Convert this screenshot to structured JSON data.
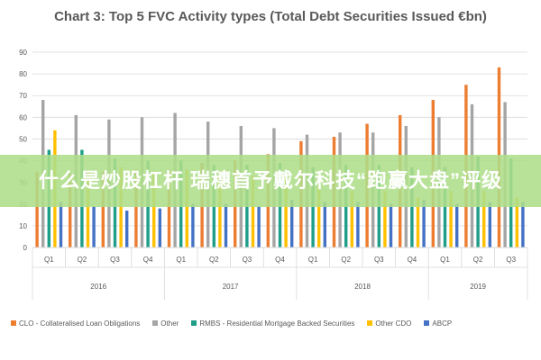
{
  "chart_data": {
    "type": "bar",
    "title": "Chart 3: Top 5 FVC Activity types (Total Debt Securities Issued €bn)",
    "categories": [
      "Q1",
      "Q2",
      "Q3",
      "Q4",
      "Q1",
      "Q2",
      "Q3",
      "Q4",
      "Q1",
      "Q2",
      "Q3",
      "Q4",
      "Q1",
      "Q2",
      "Q3"
    ],
    "groups": [
      {
        "label": "2016",
        "span": 4
      },
      {
        "label": "2017",
        "span": 4
      },
      {
        "label": "2018",
        "span": 4
      },
      {
        "label": "2019",
        "span": 3
      }
    ],
    "ylim": [
      0,
      90
    ],
    "yticks": [
      0,
      10,
      20,
      30,
      40,
      50,
      60,
      70,
      80,
      90
    ],
    "grid": true,
    "legend_position": "bottom",
    "series": [
      {
        "name": "CLO - Collateralised Loan Obligations",
        "color": "#ed7d31",
        "values": [
          35,
          34,
          35,
          36,
          36,
          39,
          40,
          43,
          49,
          51,
          57,
          61,
          68,
          75,
          83
        ]
      },
      {
        "name": "Other",
        "color": "#a5a5a5",
        "values": [
          68,
          61,
          59,
          60,
          62,
          58,
          56,
          55,
          52,
          53,
          53,
          56,
          60,
          66,
          67
        ]
      },
      {
        "name": "RMBS - Residential Mortgage Backed Securities",
        "color": "#1f9e89",
        "values": [
          45,
          45,
          41,
          40,
          40,
          38,
          38,
          39,
          37,
          38,
          38,
          37,
          37,
          42,
          41
        ]
      },
      {
        "name": "Other CDO",
        "color": "#ffc000",
        "values": [
          54,
          35,
          37,
          35,
          36,
          33,
          33,
          33,
          28,
          26,
          26,
          23,
          26,
          26,
          23
        ]
      },
      {
        "name": "ABCP",
        "color": "#4472c4",
        "values": [
          21,
          19,
          17,
          18,
          20,
          20,
          19,
          22,
          21,
          21,
          20,
          22,
          20,
          21,
          21
        ]
      }
    ]
  },
  "overlay": {
    "text": "什么是炒股杠杆 瑞穗首予戴尔科技“跑赢大盘”评级"
  },
  "colors": {
    "grid": "#d9d9d9",
    "axis_text": "#595959",
    "background": "#ffffff"
  }
}
